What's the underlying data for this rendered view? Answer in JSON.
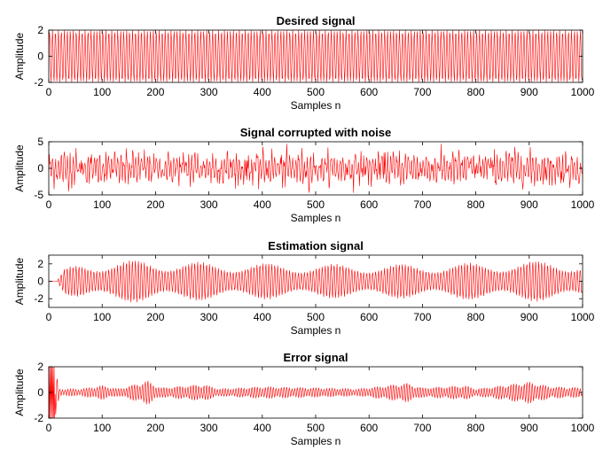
{
  "figure": {
    "plot_color": "#ff0000",
    "axis_color": "#000000",
    "background": "#ffffff"
  },
  "chart_data": [
    {
      "type": "line",
      "title": "Desired signal",
      "xlabel": "Samples n",
      "ylabel": "Amplitude",
      "xlim": [
        0,
        1000
      ],
      "ylim": [
        -2,
        2
      ],
      "xticks": [
        "0",
        "100",
        "200",
        "300",
        "400",
        "500",
        "600",
        "700",
        "800",
        "900",
        "1000"
      ],
      "yticks": [
        "-2",
        "0",
        "2"
      ],
      "series": [
        {
          "n_samples": 1000,
          "amplitude": 2,
          "envelope": [
            [
              0,
              2
            ],
            [
              1000,
              2
            ]
          ]
        }
      ]
    },
    {
      "type": "line",
      "title": "Signal corrupted with noise",
      "xlabel": "Samples n",
      "ylabel": "Amplitude",
      "xlim": [
        0,
        1000
      ],
      "ylim": [
        -5,
        5
      ],
      "xticks": [
        "0",
        "100",
        "200",
        "300",
        "400",
        "500",
        "600",
        "700",
        "800",
        "900",
        "1000"
      ],
      "yticks": [
        "-5",
        "0",
        "5"
      ],
      "series": [
        {
          "n_samples": 1000,
          "amplitude": 3.5,
          "envelope": [
            [
              0,
              3.5
            ],
            [
              1000,
              3.5
            ]
          ]
        }
      ]
    },
    {
      "type": "line",
      "title": "Estimation signal",
      "xlabel": "Samples n",
      "ylabel": "Amplitude",
      "xlim": [
        0,
        1000
      ],
      "ylim": [
        -3,
        3
      ],
      "xticks": [
        "0",
        "100",
        "200",
        "300",
        "400",
        "500",
        "600",
        "700",
        "800",
        "900",
        "1000"
      ],
      "yticks": [
        "-2",
        "0",
        "2"
      ],
      "series": [
        {
          "n_samples": 1000,
          "amplitude": 2.2,
          "envelope": [
            [
              0,
              0
            ],
            [
              15,
              0
            ],
            [
              30,
              1.5
            ],
            [
              60,
              2.2
            ],
            [
              180,
              2.5
            ],
            [
              300,
              2.2
            ],
            [
              500,
              2.0
            ],
            [
              700,
              2.0
            ],
            [
              950,
              2.4
            ],
            [
              1000,
              2.2
            ]
          ]
        }
      ]
    },
    {
      "type": "line",
      "title": "Error signal",
      "xlabel": "Samples n",
      "ylabel": "Amplitude",
      "xlim": [
        0,
        1000
      ],
      "ylim": [
        -2,
        2
      ],
      "xticks": [
        "0",
        "100",
        "200",
        "300",
        "400",
        "500",
        "600",
        "700",
        "800",
        "900",
        "1000"
      ],
      "yticks": [
        "-2",
        "0",
        "2"
      ],
      "series": [
        {
          "n_samples": 1000,
          "amplitude": 0.5,
          "envelope": [
            [
              0,
              2
            ],
            [
              12,
              2
            ],
            [
              20,
              0.3
            ],
            [
              60,
              0.3
            ],
            [
              100,
              0.6
            ],
            [
              130,
              0.3
            ],
            [
              185,
              1.0
            ],
            [
              210,
              0.4
            ],
            [
              290,
              0.7
            ],
            [
              320,
              0.3
            ],
            [
              400,
              0.5
            ],
            [
              500,
              0.4
            ],
            [
              580,
              0.3
            ],
            [
              670,
              0.8
            ],
            [
              700,
              0.4
            ],
            [
              780,
              0.6
            ],
            [
              800,
              0.3
            ],
            [
              900,
              0.9
            ],
            [
              940,
              0.5
            ],
            [
              1000,
              0.4
            ]
          ]
        }
      ]
    }
  ]
}
